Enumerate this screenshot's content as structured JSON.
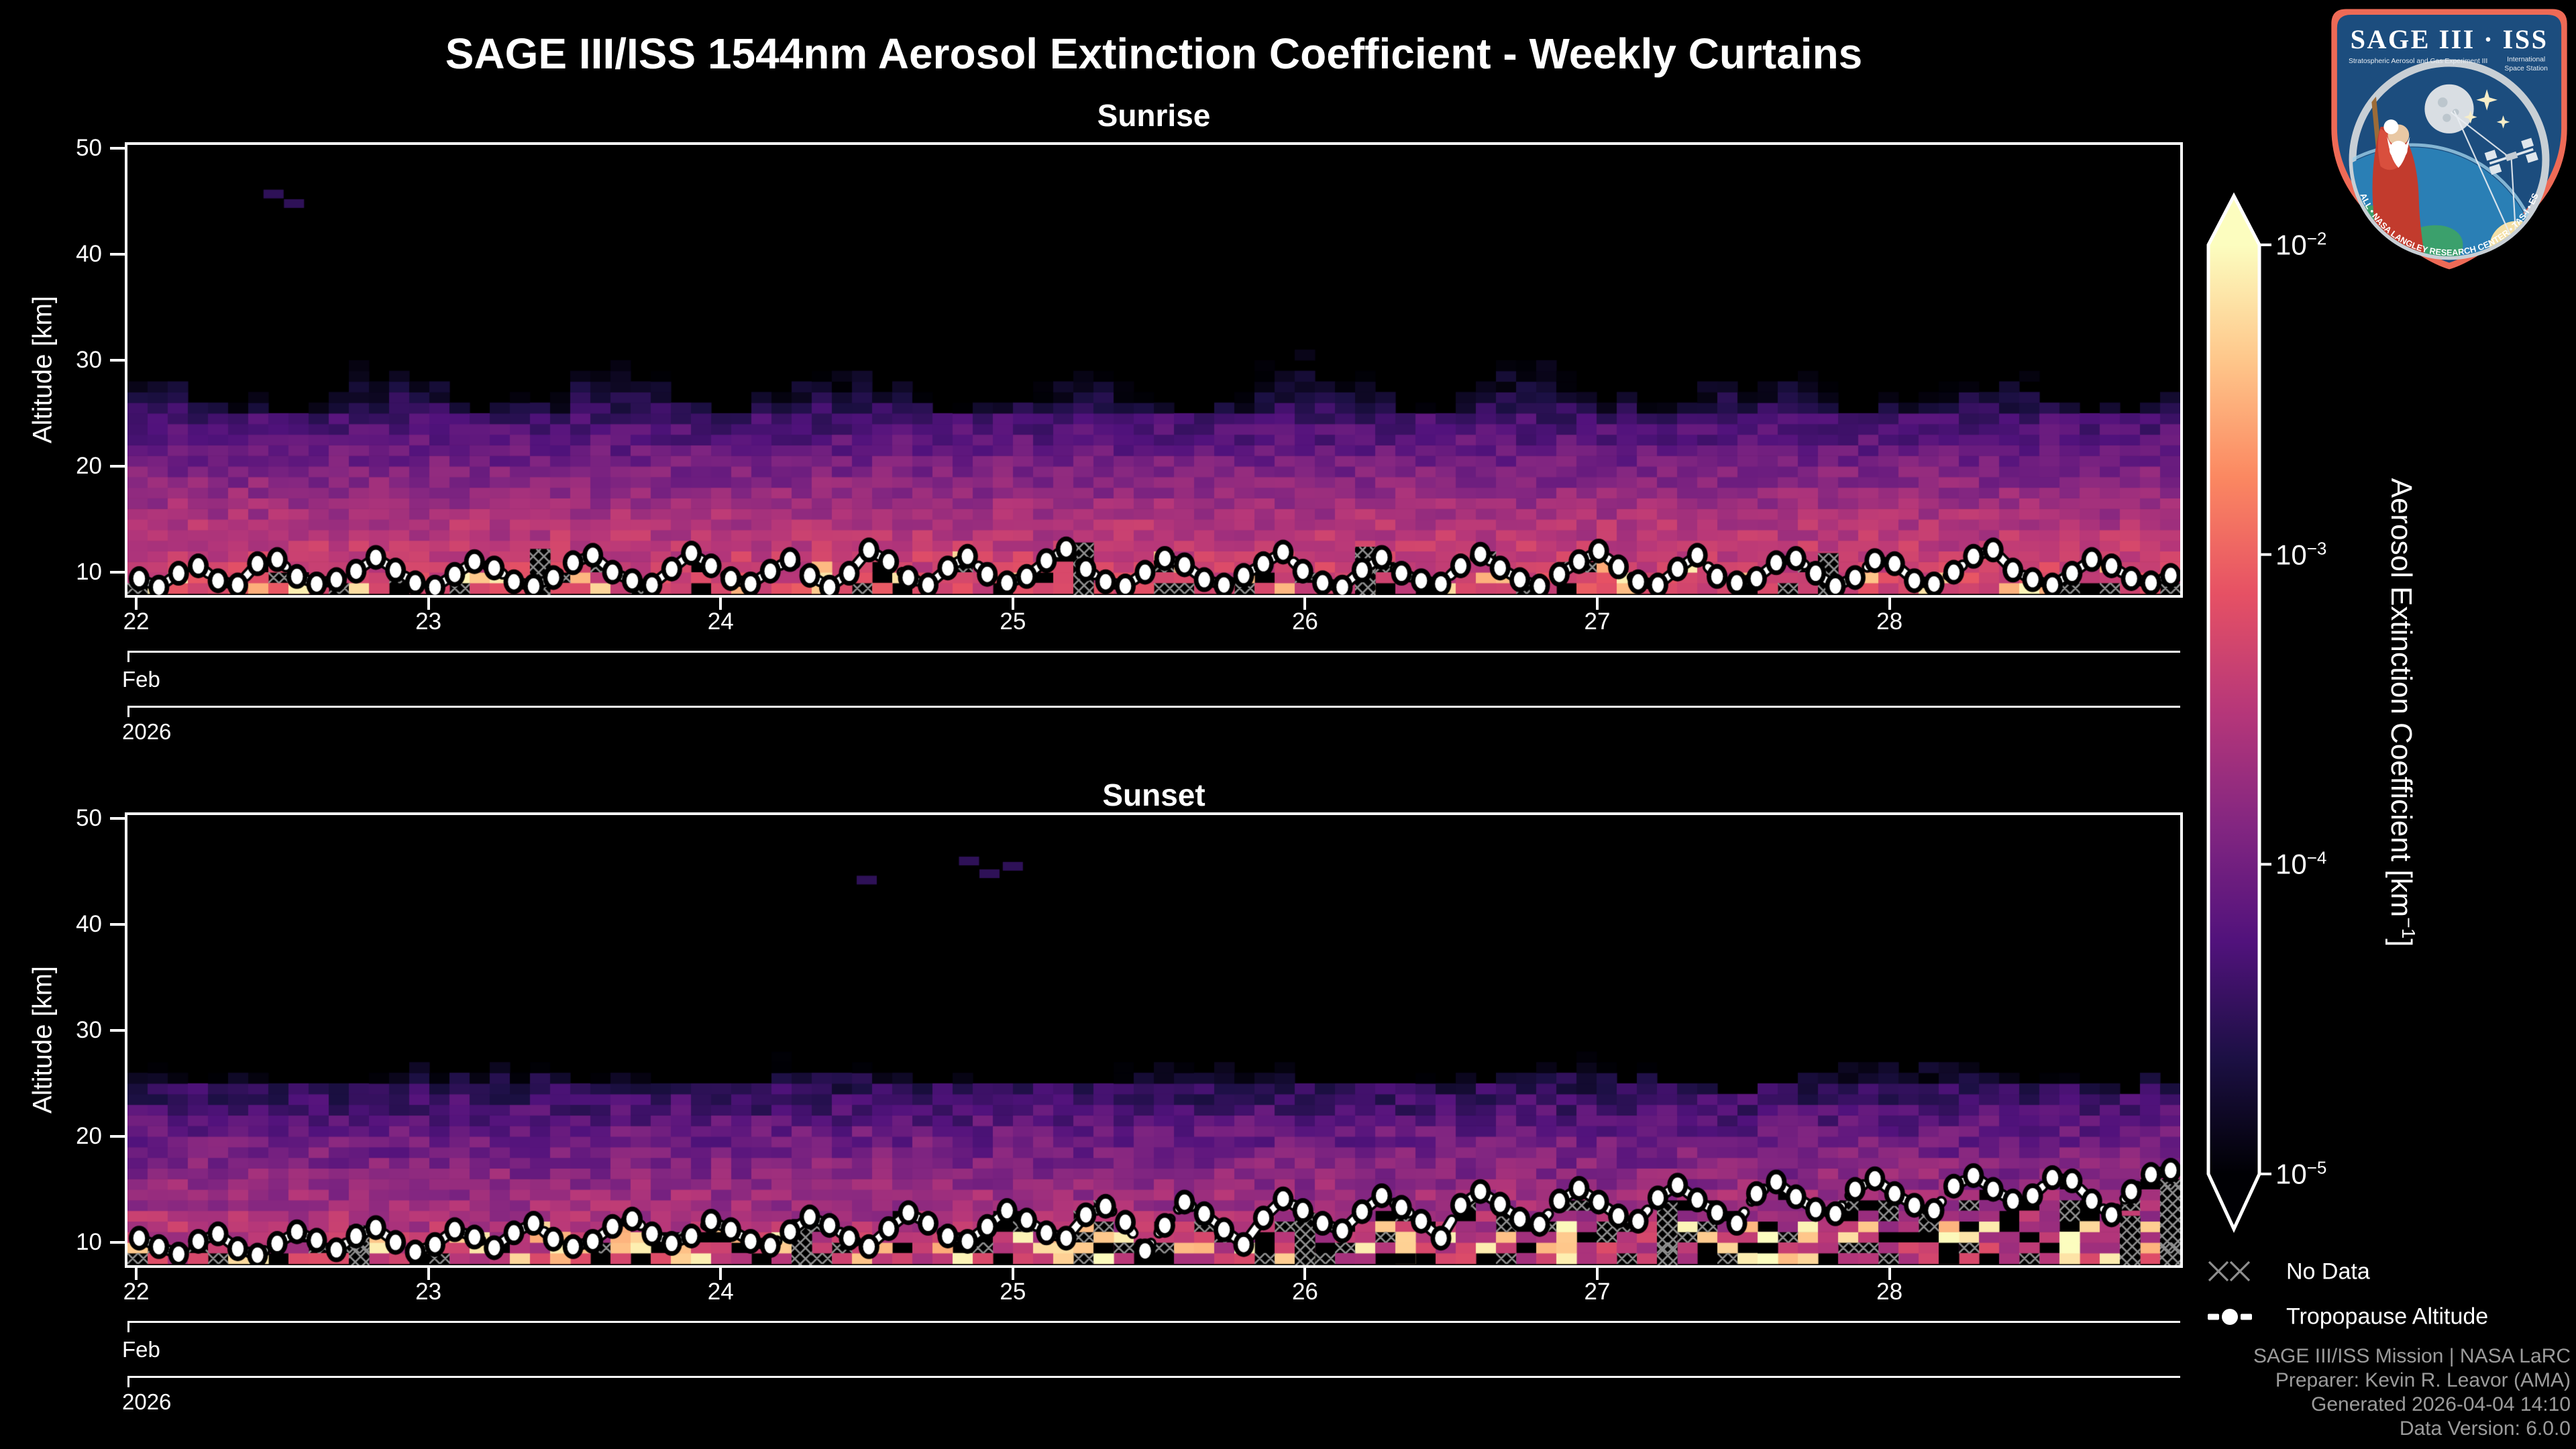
{
  "title": "SAGE III/ISS 1544nm Aerosol Extinction Coefficient - Weekly Curtains",
  "chart_data": [
    {
      "type": "heatmap",
      "title": "Sunrise",
      "ylabel": "Altitude [km]",
      "y_ticks": [
        10,
        20,
        30,
        40,
        50
      ],
      "y_range": [
        7.85,
        50.3
      ],
      "x_range_days": [
        21.97,
        28.995
      ],
      "xlabel_levels": {
        "days": [
          "22",
          "23",
          "24",
          "25",
          "26",
          "27",
          "28"
        ],
        "month": "Feb",
        "year": "2026"
      },
      "colormap": "magma",
      "value_scale": {
        "type": "log",
        "min": 1e-05,
        "max": 0.01,
        "units": "km^-1"
      },
      "grid": false,
      "field_model": {
        "seed": 11,
        "columns": 102,
        "alt_rows_km": [
          8,
          50
        ],
        "cutoff_base": 26.0,
        "cutoff_amp": 2.0,
        "cutoff_freq": 0.55,
        "cutoff_phase": 1.0,
        "cutoff_noise": 2.5,
        "profile_log10": [
          [
            8,
            -3.25
          ],
          [
            10,
            -3.35
          ],
          [
            12,
            -3.45
          ],
          [
            14,
            -3.55
          ],
          [
            16,
            -3.7
          ],
          [
            20,
            -4.0
          ],
          [
            24,
            -4.35
          ]
        ],
        "noise_dex": 0.42,
        "below_trop": {
          "max_alt": 11.5,
          "hatch_p": 0.1,
          "black_p": 0.07,
          "bright_p": 0.14
        },
        "bright_columns": [
          [
            8,
            9.6
          ],
          [
            34,
            10.2
          ]
        ],
        "tall_hatch_columns": [
          [
            20,
            12.2
          ],
          [
            47,
            12.8
          ],
          [
            61,
            12.4
          ],
          [
            84,
            11.8
          ]
        ]
      },
      "tropopause": {
        "x_start": 22.01,
        "x_step": 0.0675,
        "altitudes": [
          9.4,
          8.6,
          9.9,
          10.6,
          9.2,
          8.8,
          10.8,
          11.2,
          9.6,
          8.9,
          9.3,
          10.1,
          11.4,
          10.2,
          9.0,
          8.6,
          9.8,
          11.0,
          10.4,
          9.1,
          8.7,
          9.5,
          10.9,
          11.6,
          10.0,
          9.2,
          8.8,
          10.3,
          11.8,
          10.6,
          9.4,
          8.9,
          10.1,
          11.2,
          9.7,
          8.6,
          9.9,
          12.1,
          11.0,
          9.5,
          8.8,
          10.4,
          11.5,
          9.8,
          9.0,
          9.6,
          11.1,
          12.2,
          10.3,
          9.1,
          8.7,
          10.0,
          11.3,
          10.7,
          9.3,
          8.8,
          9.7,
          10.8,
          11.9,
          10.1,
          9.0,
          8.6,
          10.2,
          11.4,
          9.9,
          9.2,
          8.9,
          10.6,
          11.7,
          10.4,
          9.3,
          8.7,
          9.8,
          11.0,
          12.0,
          10.5,
          9.1,
          8.8,
          10.3,
          11.6,
          9.6,
          9.0,
          9.4,
          10.9,
          11.3,
          9.9,
          8.7,
          9.5,
          11.1,
          10.8,
          9.2,
          8.9,
          10.0,
          11.5,
          12.1,
          10.2,
          9.3,
          8.8,
          9.9,
          11.2,
          10.6,
          9.4,
          9.0,
          9.7
        ]
      },
      "specks": [
        [
          22.47,
          45.7
        ],
        [
          22.54,
          44.8
        ]
      ]
    },
    {
      "type": "heatmap",
      "title": "Sunset",
      "ylabel": "Altitude [km]",
      "y_ticks": [
        10,
        20,
        30,
        40,
        50
      ],
      "y_range": [
        7.85,
        50.3
      ],
      "x_range_days": [
        21.97,
        28.995
      ],
      "xlabel_levels": {
        "days": [
          "22",
          "23",
          "24",
          "25",
          "26",
          "27",
          "28"
        ],
        "month": "Feb",
        "year": "2026"
      },
      "colormap": "magma",
      "value_scale": {
        "type": "log",
        "min": 1e-05,
        "max": 0.01,
        "units": "km^-1"
      },
      "grid": false,
      "field_model": {
        "seed": 77,
        "columns": 102,
        "alt_rows_km": [
          8,
          50
        ],
        "cutoff_base": 24.8,
        "cutoff_amp": 1.2,
        "cutoff_freq": 0.35,
        "cutoff_phase": 2.0,
        "cutoff_noise": 1.8,
        "profile_log10": [
          [
            8,
            -3.4
          ],
          [
            12,
            -3.6
          ],
          [
            16,
            -3.85
          ],
          [
            20,
            -4.1
          ],
          [
            24,
            -4.5
          ]
        ],
        "noise_dex": 0.5,
        "below_trop": {
          "max_alt": 11.3,
          "hatch_p": 0.17,
          "black_p": 0.16,
          "bright_p": 0.2
        },
        "bright_columns": [
          [
            21,
            10.8
          ],
          [
            48,
            11.0
          ],
          [
            63,
            10.6
          ],
          [
            71,
            11.2
          ],
          [
            81,
            10.5
          ],
          [
            90,
            11.5
          ],
          [
            96,
            10.8
          ]
        ],
        "tall_hatch_columns": [
          [
            11,
            11.6
          ],
          [
            33,
            12.2
          ],
          [
            58,
            12.8
          ],
          [
            76,
            13.8
          ],
          [
            99,
            12.5
          ],
          [
            101,
            15.5
          ]
        ]
      },
      "tropopause": {
        "x_start": 22.01,
        "x_step": 0.0675,
        "altitudes": [
          10.4,
          9.6,
          8.9,
          10.1,
          10.8,
          9.4,
          8.8,
          9.9,
          11.0,
          10.2,
          9.3,
          10.6,
          11.4,
          10.0,
          9.1,
          9.8,
          11.2,
          10.5,
          9.5,
          10.9,
          11.8,
          10.3,
          9.6,
          10.1,
          11.5,
          12.2,
          10.8,
          9.9,
          10.6,
          12.0,
          11.2,
          10.1,
          9.7,
          11.0,
          12.4,
          11.6,
          10.4,
          9.6,
          11.3,
          12.8,
          11.8,
          10.6,
          10.1,
          11.5,
          13.0,
          12.1,
          10.9,
          10.4,
          12.6,
          13.4,
          11.9,
          9.2,
          11.6,
          13.8,
          12.7,
          11.2,
          9.8,
          12.3,
          14.1,
          13.0,
          11.8,
          11.1,
          12.9,
          14.4,
          13.3,
          12.0,
          10.4,
          13.5,
          14.8,
          13.6,
          12.2,
          11.7,
          13.9,
          15.1,
          13.8,
          12.5,
          12.0,
          14.2,
          15.4,
          14.0,
          12.8,
          11.8,
          14.6,
          15.7,
          14.3,
          13.1,
          12.7,
          15.0,
          16.0,
          14.6,
          13.5,
          13.0,
          15.3,
          16.3,
          15.0,
          13.9,
          14.4,
          16.1,
          15.8,
          13.9,
          12.6,
          14.8,
          16.4,
          16.8
        ]
      },
      "specks": [
        [
          24.5,
          44.2
        ],
        [
          24.85,
          46.0
        ],
        [
          24.92,
          44.8
        ],
        [
          25.0,
          45.5
        ]
      ]
    }
  ],
  "colorbar": {
    "label_pre": "Aerosol Extinction Coefficient [km",
    "label_exp": "−1",
    "label_post": "]",
    "tick_exps": [
      -2,
      -3,
      -4,
      -5
    ],
    "colormap_stops": [
      [
        0,
        "#000004"
      ],
      [
        0.125,
        "#1c1044"
      ],
      [
        0.25,
        "#51127c"
      ],
      [
        0.375,
        "#832681"
      ],
      [
        0.5,
        "#b73779"
      ],
      [
        0.625,
        "#e65164"
      ],
      [
        0.75,
        "#fb8861"
      ],
      [
        0.875,
        "#fec68a"
      ],
      [
        1,
        "#fcfdbf"
      ]
    ]
  },
  "legend": {
    "no_data": "No Data",
    "tropopause": "Tropopause Altitude"
  },
  "footer": {
    "lines": [
      "SAGE III/ISS Mission | NASA LaRC",
      "Preparer: Kevin R. Leavor (AMA)",
      "Generated 2026-04-04 14:10",
      "Data Version: 6.0.0"
    ]
  },
  "patch": {
    "title": "SAGE III · ISS",
    "subtitle_left": "Stratospheric Aerosol and Gas Experiment III",
    "subtitle_right_1": "International",
    "subtitle_right_2": "Space Station",
    "ring_text": "BALL • NASA LANGLEY RESEARCH CENTER • TAS-I • ESA",
    "colors": {
      "border": "#ee6a56",
      "field": "#1c4d7e",
      "ring": "#c8cfd5",
      "earth_ocean": "#2a7fb5",
      "earth_land": "#3ba06c",
      "robe": "#c23b2d",
      "sun": "#f4e0a6"
    }
  }
}
